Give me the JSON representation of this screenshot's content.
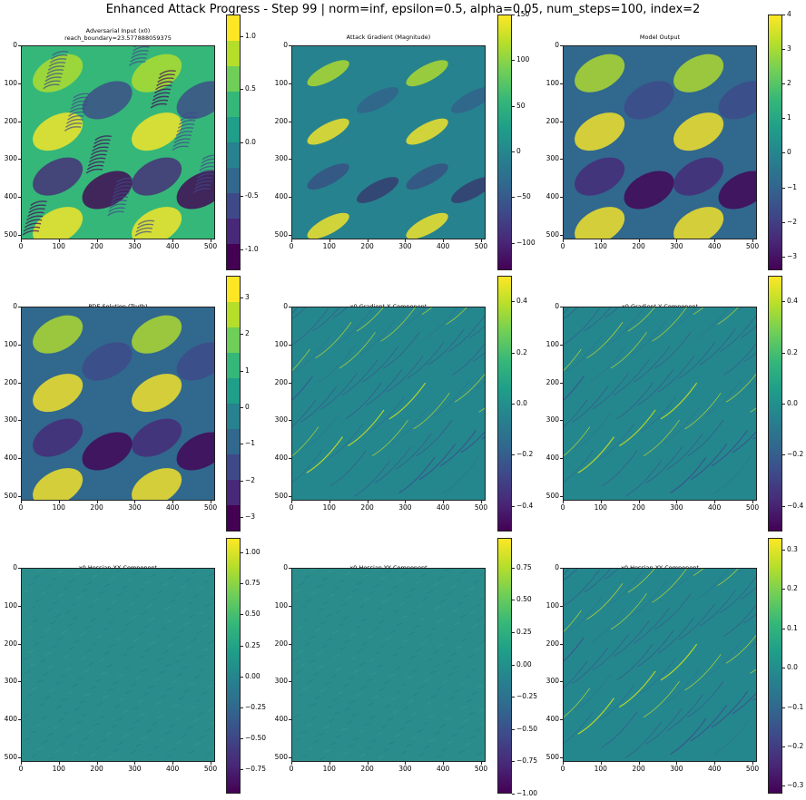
{
  "figure": {
    "suptitle": "Enhanced Attack Progress - Step 99 | norm=inf, epsilon=0.5, alpha=0.05, num_steps=100, index=2"
  },
  "colormap": {
    "name": "viridis",
    "stops": [
      "#440154",
      "#482878",
      "#3e4989",
      "#31688e",
      "#26828e",
      "#1f9e89",
      "#35b779",
      "#6ece58",
      "#b5de2b",
      "#fde725"
    ]
  },
  "chart_data": [
    {
      "type": "heatmap",
      "title": "Adversarial Input (x0)",
      "subtitle": "reach_boundary=23.577888059375",
      "pattern": "streaky",
      "xticks": [
        "0",
        "100",
        "200",
        "300",
        "400",
        "500"
      ],
      "yticks": [
        "0",
        "100",
        "200",
        "300",
        "400",
        "500"
      ],
      "colorbar": {
        "ticks": [
          "1.0",
          "0.5",
          "0.0",
          "-0.5",
          "-1.0"
        ],
        "range": [
          -1.2,
          1.2
        ],
        "tick_values": [
          1.0,
          0.5,
          0.0,
          -0.5,
          -1.0
        ],
        "discrete": true
      }
    },
    {
      "type": "heatmap",
      "title": "Attack Gradient (Magnitude)",
      "pattern": "smooth",
      "xticks": [
        "0",
        "100",
        "200",
        "300",
        "400",
        "500"
      ],
      "yticks": [
        "0",
        "100",
        "200",
        "300",
        "400",
        "500"
      ],
      "colorbar": {
        "ticks": [
          "150",
          "100",
          "50",
          "0",
          "−50",
          "−100"
        ],
        "range": [
          -130,
          150
        ],
        "tick_values": [
          150,
          100,
          50,
          0,
          -50,
          -100
        ],
        "discrete": false
      }
    },
    {
      "type": "heatmap",
      "title": "Model Output",
      "pattern": "swirl",
      "xticks": [
        "0",
        "100",
        "200",
        "300",
        "400",
        "500"
      ],
      "yticks": [
        "0",
        "100",
        "200",
        "300",
        "400",
        "500"
      ],
      "colorbar": {
        "ticks": [
          "4",
          "3",
          "2",
          "1",
          "0",
          "−1",
          "−2",
          "−3"
        ],
        "range": [
          -3.4,
          4.0
        ],
        "tick_values": [
          4,
          3,
          2,
          1,
          0,
          -1,
          -2,
          -3
        ],
        "discrete": false
      }
    },
    {
      "type": "heatmap",
      "title": "PDE Solution (Truth)",
      "pattern": "swirl",
      "xticks": [
        "0",
        "100",
        "200",
        "300",
        "400",
        "500"
      ],
      "yticks": [
        "0",
        "100",
        "200",
        "300",
        "400",
        "500"
      ],
      "colorbar": {
        "ticks": [
          "3",
          "2",
          "1",
          "0",
          "−1",
          "−2",
          "−3"
        ],
        "range": [
          -3.4,
          3.6
        ],
        "tick_values": [
          3,
          2,
          1,
          0,
          -1,
          -2,
          -3
        ],
        "discrete": true
      }
    },
    {
      "type": "heatmap",
      "title": "x0 Gradient X Component",
      "pattern": "lines",
      "xticks": [
        "0",
        "100",
        "200",
        "300",
        "400",
        "500"
      ],
      "yticks": [
        "0",
        "100",
        "200",
        "300",
        "400",
        "500"
      ],
      "colorbar": {
        "ticks": [
          "0.4",
          "0.2",
          "0.0",
          "−0.2",
          "−0.4"
        ],
        "range": [
          -0.5,
          0.5
        ],
        "tick_values": [
          0.4,
          0.2,
          0.0,
          -0.2,
          -0.4
        ],
        "discrete": false
      }
    },
    {
      "type": "heatmap",
      "title": "x0 Gradient Y Component",
      "pattern": "lines",
      "xticks": [
        "0",
        "100",
        "200",
        "300",
        "400",
        "500"
      ],
      "yticks": [
        "0",
        "100",
        "200",
        "300",
        "400",
        "500"
      ],
      "colorbar": {
        "ticks": [
          "0.4",
          "0.2",
          "0.0",
          "−0.2",
          "−0.4"
        ],
        "range": [
          -0.5,
          0.5
        ],
        "tick_values": [
          0.4,
          0.2,
          0.0,
          -0.2,
          -0.4
        ],
        "discrete": false
      }
    },
    {
      "type": "heatmap",
      "title": "x0 Hessian XX Component",
      "pattern": "noise",
      "xticks": [
        "0",
        "100",
        "200",
        "300",
        "400",
        "500"
      ],
      "yticks": [
        "0",
        "100",
        "200",
        "300",
        "400",
        "500"
      ],
      "colorbar": {
        "ticks": [
          "1.00",
          "0.75",
          "0.50",
          "0.25",
          "0.00",
          "−0.25",
          "−0.50",
          "−0.75"
        ],
        "range": [
          -0.95,
          1.12
        ],
        "tick_values": [
          1.0,
          0.75,
          0.5,
          0.25,
          0.0,
          -0.25,
          -0.5,
          -0.75
        ],
        "discrete": false
      }
    },
    {
      "type": "heatmap",
      "title": "x0 Hessian YY Component",
      "pattern": "noise",
      "xticks": [
        "0",
        "100",
        "200",
        "300",
        "400",
        "500"
      ],
      "yticks": [
        "0",
        "100",
        "200",
        "300",
        "400",
        "500"
      ],
      "colorbar": {
        "ticks": [
          "0.75",
          "0.50",
          "0.25",
          "0.00",
          "−0.25",
          "−0.50",
          "−0.75",
          "−1.00"
        ],
        "range": [
          -1.0,
          0.98
        ],
        "tick_values": [
          0.75,
          0.5,
          0.25,
          0.0,
          -0.25,
          -0.5,
          -0.75,
          -1.0
        ],
        "discrete": false
      }
    },
    {
      "type": "heatmap",
      "title": "x0 Hessian XY Component",
      "pattern": "lines",
      "xticks": [
        "0",
        "100",
        "200",
        "300",
        "400",
        "500"
      ],
      "yticks": [
        "0",
        "100",
        "200",
        "300",
        "400",
        "500"
      ],
      "colorbar": {
        "ticks": [
          "0.3",
          "0.2",
          "0.1",
          "0.0",
          "−0.1",
          "−0.2",
          "−0.3"
        ],
        "range": [
          -0.32,
          0.33
        ],
        "tick_values": [
          0.3,
          0.2,
          0.1,
          0.0,
          -0.1,
          -0.2,
          -0.3
        ],
        "discrete": false
      }
    }
  ]
}
